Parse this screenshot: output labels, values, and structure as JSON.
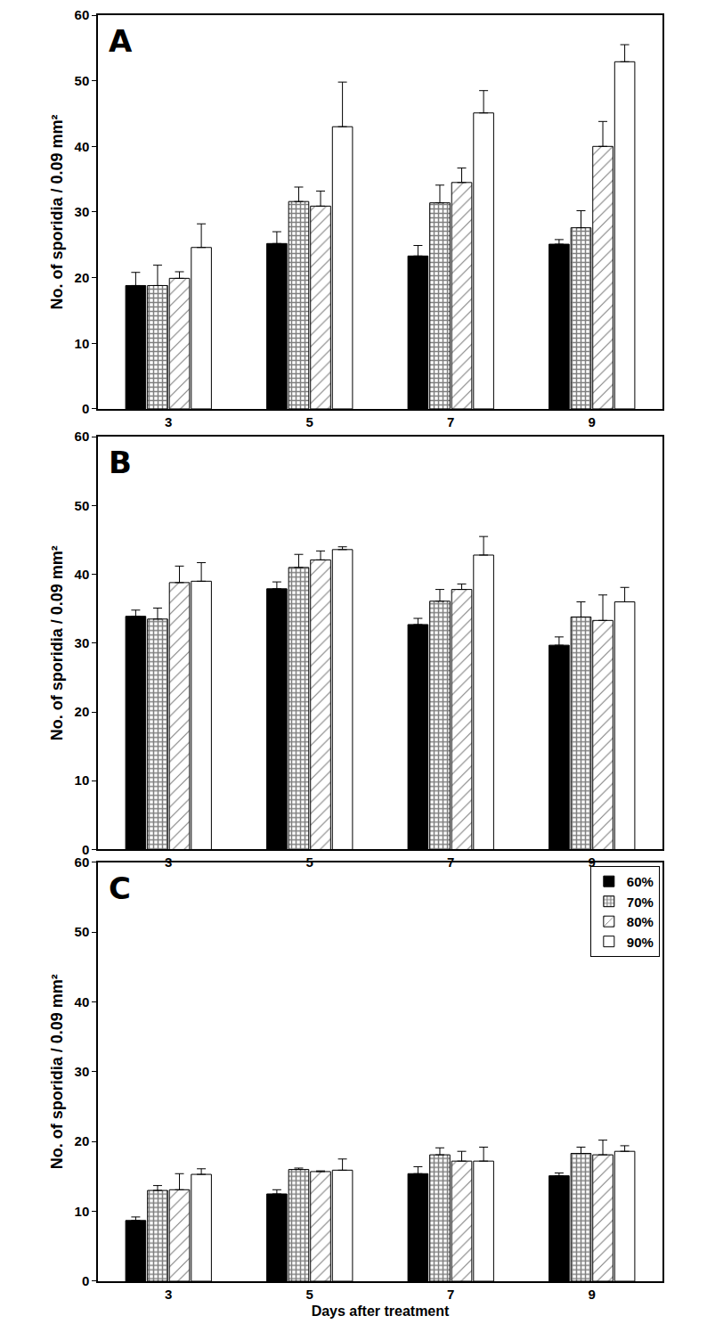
{
  "chart_data": [
    {
      "type": "bar",
      "title": "A",
      "y_label": "No. of sporidia / 0.09 mm²",
      "categories": [
        "3",
        "5",
        "7",
        "9"
      ],
      "ylim": [
        0,
        60
      ],
      "yticks": [
        0,
        10,
        20,
        30,
        40,
        50,
        60
      ],
      "series": [
        {
          "name": "60%",
          "color": "#000000",
          "marker": "solid",
          "values": [
            18.8,
            25.2,
            23.3,
            25.1
          ],
          "errors": [
            2.0,
            1.8,
            1.6,
            0.7
          ]
        },
        {
          "name": "70%",
          "color": "#000000",
          "marker": "checkered",
          "values": [
            18.8,
            31.6,
            31.4,
            27.6
          ],
          "errors": [
            3.1,
            2.2,
            2.7,
            2.6
          ]
        },
        {
          "name": "80%",
          "color": "#000000",
          "marker": "hatched",
          "values": [
            19.9,
            30.9,
            34.5,
            40.0
          ],
          "errors": [
            1.0,
            2.3,
            2.2,
            3.8
          ]
        },
        {
          "name": "90%",
          "color": "#ffffff",
          "marker": "open",
          "values": [
            24.6,
            43.0,
            45.1,
            52.9
          ],
          "errors": [
            3.6,
            6.8,
            3.4,
            2.6
          ]
        }
      ]
    },
    {
      "type": "bar",
      "title": "B",
      "y_label": "No. of sporidia / 0.09 mm²",
      "categories": [
        "3",
        "5",
        "7",
        "9"
      ],
      "ylim": [
        0,
        60
      ],
      "yticks": [
        0,
        10,
        20,
        30,
        40,
        50,
        60
      ],
      "series": [
        {
          "name": "60%",
          "color": "#000000",
          "marker": "solid",
          "values": [
            33.9,
            37.9,
            32.7,
            29.7
          ],
          "errors": [
            0.9,
            1.0,
            0.9,
            1.2
          ]
        },
        {
          "name": "70%",
          "color": "#000000",
          "marker": "checkered",
          "values": [
            33.5,
            41.0,
            36.1,
            33.8
          ],
          "errors": [
            1.6,
            1.9,
            1.7,
            2.2
          ]
        },
        {
          "name": "80%",
          "color": "#000000",
          "marker": "hatched",
          "values": [
            38.8,
            42.1,
            37.8,
            33.3
          ],
          "errors": [
            2.4,
            1.3,
            0.8,
            3.7
          ]
        },
        {
          "name": "90%",
          "color": "#ffffff",
          "marker": "open",
          "values": [
            39.0,
            43.6,
            42.8,
            36.0
          ],
          "errors": [
            2.7,
            0.4,
            2.7,
            2.1
          ]
        }
      ]
    },
    {
      "type": "bar",
      "title": "C",
      "y_label": "No. of sporidia / 0.09 mm²",
      "x_label": "Days after treatment",
      "categories": [
        "3",
        "5",
        "7",
        "9"
      ],
      "ylim": [
        0,
        60
      ],
      "yticks": [
        0,
        10,
        20,
        30,
        40,
        50,
        60
      ],
      "legend": "top right",
      "series": [
        {
          "name": "60%",
          "color": "#000000",
          "marker": "solid",
          "values": [
            8.7,
            12.5,
            15.4,
            15.1
          ],
          "errors": [
            0.5,
            0.6,
            1.0,
            0.4
          ]
        },
        {
          "name": "70%",
          "color": "#000000",
          "marker": "checkered",
          "values": [
            13.0,
            16.0,
            18.1,
            18.3
          ],
          "errors": [
            0.7,
            0.2,
            1.0,
            0.9
          ]
        },
        {
          "name": "80%",
          "color": "#000000",
          "marker": "hatched",
          "values": [
            13.1,
            15.7,
            17.2,
            18.1
          ],
          "errors": [
            2.3,
            0.1,
            1.4,
            2.1
          ]
        },
        {
          "name": "90%",
          "color": "#ffffff",
          "marker": "open",
          "values": [
            15.3,
            15.9,
            17.2,
            18.6
          ],
          "errors": [
            0.8,
            1.6,
            2.0,
            0.8
          ]
        }
      ]
    }
  ]
}
